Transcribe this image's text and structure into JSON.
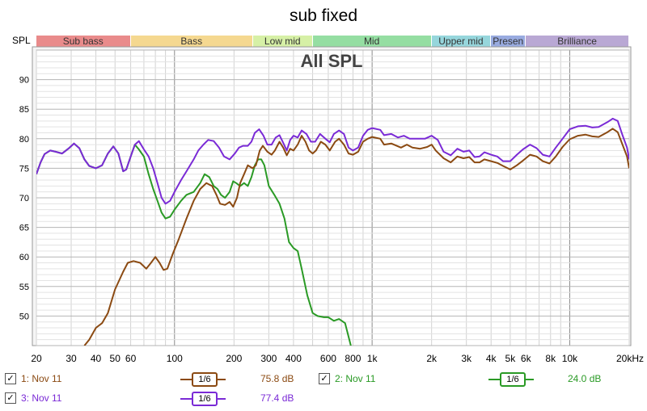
{
  "title": "sub fixed",
  "y_unit_label": "SPL",
  "bands": [
    {
      "label": "Sub bass",
      "from": 20,
      "to": 60,
      "color": "#e98b8b"
    },
    {
      "label": "Bass",
      "from": 60,
      "to": 250,
      "color": "#f5d890"
    },
    {
      "label": "Low mid",
      "from": 250,
      "to": 500,
      "color": "#d6f0a6"
    },
    {
      "label": "Mid",
      "from": 500,
      "to": 2000,
      "color": "#95dea2"
    },
    {
      "label": "Upper mid",
      "from": 2000,
      "to": 4000,
      "color": "#96d6dc"
    },
    {
      "label": "Presen",
      "from": 4000,
      "to": 6000,
      "color": "#99abe0"
    },
    {
      "label": "Brilliance",
      "from": 6000,
      "to": 20000,
      "color": "#b9a8d4"
    }
  ],
  "chart_data": {
    "type": "line",
    "title": "All SPL",
    "xlabel": "",
    "ylabel": "SPL",
    "x_scale": "log",
    "xlim": [
      20,
      20000
    ],
    "ylim": [
      45,
      95
    ],
    "x_ticks": [
      {
        "value": 20,
        "label": "20"
      },
      {
        "value": 30,
        "label": "30"
      },
      {
        "value": 40,
        "label": "40"
      },
      {
        "value": 50,
        "label": "50"
      },
      {
        "value": 60,
        "label": "60"
      },
      {
        "value": 100,
        "label": "100"
      },
      {
        "value": 200,
        "label": "200"
      },
      {
        "value": 300,
        "label": "300"
      },
      {
        "value": 400,
        "label": "400"
      },
      {
        "value": 600,
        "label": "600"
      },
      {
        "value": 800,
        "label": "800"
      },
      {
        "value": 1000,
        "label": "1k"
      },
      {
        "value": 2000,
        "label": "2k"
      },
      {
        "value": 3000,
        "label": "3k"
      },
      {
        "value": 4000,
        "label": "4k"
      },
      {
        "value": 5000,
        "label": "5k"
      },
      {
        "value": 6000,
        "label": "6k"
      },
      {
        "value": 8000,
        "label": "8k"
      },
      {
        "value": 10000,
        "label": "10k"
      },
      {
        "value": 20000,
        "label": "20kHz"
      }
    ],
    "y_ticks": [
      50,
      55,
      60,
      65,
      70,
      75,
      80,
      85,
      90
    ],
    "grid": true,
    "series": [
      {
        "name": "1: Nov 11",
        "color": "#8b4a12",
        "smoothing": "1/6",
        "level": "75.8 dB",
        "checked": true,
        "points": [
          [
            35,
            45.0
          ],
          [
            37,
            46.0
          ],
          [
            40,
            48.0
          ],
          [
            43,
            48.8
          ],
          [
            46,
            50.5
          ],
          [
            50,
            54.5
          ],
          [
            55,
            57.5
          ],
          [
            58,
            59.0
          ],
          [
            62,
            59.3
          ],
          [
            67,
            59.0
          ],
          [
            72,
            58.0
          ],
          [
            76,
            59.0
          ],
          [
            80,
            60.0
          ],
          [
            84,
            59.0
          ],
          [
            88,
            57.8
          ],
          [
            92,
            58.0
          ],
          [
            98,
            60.5
          ],
          [
            105,
            63.0
          ],
          [
            115,
            66.5
          ],
          [
            125,
            69.5
          ],
          [
            135,
            71.5
          ],
          [
            145,
            72.5
          ],
          [
            155,
            72.0
          ],
          [
            163,
            70.5
          ],
          [
            170,
            69.0
          ],
          [
            180,
            68.8
          ],
          [
            190,
            69.3
          ],
          [
            198,
            68.5
          ],
          [
            207,
            70.0
          ],
          [
            215,
            72.5
          ],
          [
            225,
            74.0
          ],
          [
            235,
            75.5
          ],
          [
            248,
            75.0
          ],
          [
            258,
            75.5
          ],
          [
            270,
            78.0
          ],
          [
            280,
            78.8
          ],
          [
            295,
            77.8
          ],
          [
            310,
            77.3
          ],
          [
            322,
            78.0
          ],
          [
            340,
            79.5
          ],
          [
            355,
            78.5
          ],
          [
            370,
            77.2
          ],
          [
            385,
            78.3
          ],
          [
            400,
            78.0
          ],
          [
            420,
            79.0
          ],
          [
            440,
            80.5
          ],
          [
            460,
            79.5
          ],
          [
            480,
            78.0
          ],
          [
            500,
            77.5
          ],
          [
            520,
            78.0
          ],
          [
            550,
            79.5
          ],
          [
            580,
            79.0
          ],
          [
            610,
            78.0
          ],
          [
            650,
            79.5
          ],
          [
            680,
            80.0
          ],
          [
            720,
            79.0
          ],
          [
            760,
            77.5
          ],
          [
            800,
            77.3
          ],
          [
            850,
            77.8
          ],
          [
            900,
            79.5
          ],
          [
            950,
            80.0
          ],
          [
            1000,
            80.3
          ],
          [
            1100,
            80.0
          ],
          [
            1150,
            79.0
          ],
          [
            1250,
            79.2
          ],
          [
            1400,
            78.5
          ],
          [
            1500,
            79.0
          ],
          [
            1600,
            78.5
          ],
          [
            1750,
            78.3
          ],
          [
            1900,
            78.6
          ],
          [
            2000,
            79.0
          ],
          [
            2100,
            78.0
          ],
          [
            2300,
            76.7
          ],
          [
            2500,
            76.0
          ],
          [
            2700,
            77.0
          ],
          [
            2900,
            76.7
          ],
          [
            3100,
            76.9
          ],
          [
            3300,
            76.0
          ],
          [
            3500,
            76.0
          ],
          [
            3700,
            76.5
          ],
          [
            4000,
            76.2
          ],
          [
            4300,
            75.9
          ],
          [
            4600,
            75.4
          ],
          [
            5000,
            74.8
          ],
          [
            5400,
            75.5
          ],
          [
            5800,
            76.3
          ],
          [
            6300,
            77.3
          ],
          [
            6800,
            77.0
          ],
          [
            7300,
            76.2
          ],
          [
            7900,
            75.8
          ],
          [
            8500,
            77.0
          ],
          [
            9200,
            78.6
          ],
          [
            10000,
            79.9
          ],
          [
            11000,
            80.5
          ],
          [
            12000,
            80.7
          ],
          [
            13000,
            80.4
          ],
          [
            14000,
            80.3
          ],
          [
            15500,
            81.1
          ],
          [
            16500,
            81.7
          ],
          [
            17500,
            81.1
          ],
          [
            18500,
            79.0
          ],
          [
            19500,
            77.0
          ],
          [
            20000,
            75.0
          ]
        ]
      },
      {
        "name": "2: Nov 11",
        "color": "#2a9a25",
        "smoothing": "1/6",
        "level": "24.0 dB",
        "checked": true,
        "points": [
          [
            20,
            74.0
          ],
          [
            21,
            76.0
          ],
          [
            22,
            77.4
          ],
          [
            23.5,
            78.0
          ],
          [
            25,
            77.8
          ],
          [
            27,
            77.5
          ],
          [
            29,
            78.3
          ],
          [
            31,
            79.2
          ],
          [
            33,
            78.4
          ],
          [
            35,
            76.5
          ],
          [
            37,
            75.4
          ],
          [
            40,
            75.0
          ],
          [
            43,
            75.5
          ],
          [
            46,
            77.5
          ],
          [
            49,
            78.7
          ],
          [
            52,
            77.5
          ],
          [
            55,
            74.5
          ],
          [
            57,
            74.8
          ],
          [
            60,
            77.0
          ],
          [
            63,
            79.0
          ],
          [
            66,
            78.2
          ],
          [
            70,
            77.0
          ],
          [
            74,
            74.0
          ],
          [
            78,
            71.5
          ],
          [
            82,
            69.5
          ],
          [
            86,
            67.5
          ],
          [
            90,
            66.5
          ],
          [
            95,
            66.8
          ],
          [
            100,
            68.0
          ],
          [
            108,
            69.5
          ],
          [
            115,
            70.5
          ],
          [
            125,
            71.0
          ],
          [
            135,
            72.5
          ],
          [
            142,
            74.0
          ],
          [
            150,
            73.5
          ],
          [
            158,
            72.0
          ],
          [
            165,
            71.5
          ],
          [
            172,
            70.5
          ],
          [
            180,
            70.0
          ],
          [
            190,
            71.0
          ],
          [
            198,
            72.8
          ],
          [
            205,
            72.5
          ],
          [
            215,
            72.0
          ],
          [
            225,
            72.5
          ],
          [
            235,
            72.0
          ],
          [
            245,
            73.5
          ],
          [
            255,
            75.5
          ],
          [
            265,
            76.5
          ],
          [
            275,
            76.5
          ],
          [
            285,
            75.5
          ],
          [
            300,
            72.0
          ],
          [
            320,
            70.5
          ],
          [
            340,
            69.0
          ],
          [
            360,
            66.5
          ],
          [
            380,
            62.5
          ],
          [
            400,
            61.5
          ],
          [
            420,
            61.0
          ],
          [
            440,
            58.0
          ],
          [
            470,
            53.5
          ],
          [
            500,
            50.5
          ],
          [
            530,
            50.0
          ],
          [
            570,
            49.8
          ],
          [
            600,
            49.8
          ],
          [
            640,
            49.2
          ],
          [
            680,
            49.5
          ],
          [
            730,
            48.8
          ],
          [
            760,
            46.5
          ],
          [
            780,
            45.0
          ]
        ]
      },
      {
        "name": "3: Nov 11",
        "color": "#7a2ad6",
        "smoothing": "1/6",
        "level": "77.4 dB",
        "checked": true,
        "points": [
          [
            20,
            74.0
          ],
          [
            21,
            76.0
          ],
          [
            22,
            77.4
          ],
          [
            23.5,
            78.0
          ],
          [
            25,
            77.8
          ],
          [
            27,
            77.5
          ],
          [
            29,
            78.3
          ],
          [
            31,
            79.2
          ],
          [
            33,
            78.4
          ],
          [
            35,
            76.5
          ],
          [
            37,
            75.4
          ],
          [
            40,
            75.0
          ],
          [
            43,
            75.5
          ],
          [
            46,
            77.5
          ],
          [
            49,
            78.7
          ],
          [
            52,
            77.5
          ],
          [
            55,
            74.5
          ],
          [
            57,
            74.8
          ],
          [
            60,
            77.0
          ],
          [
            63,
            79.0
          ],
          [
            66,
            79.6
          ],
          [
            70,
            78.2
          ],
          [
            74,
            77.0
          ],
          [
            78,
            75.0
          ],
          [
            82,
            72.5
          ],
          [
            86,
            70.0
          ],
          [
            90,
            69.0
          ],
          [
            95,
            69.5
          ],
          [
            100,
            71.0
          ],
          [
            108,
            73.0
          ],
          [
            115,
            74.5
          ],
          [
            125,
            76.5
          ],
          [
            132,
            78.0
          ],
          [
            140,
            79.0
          ],
          [
            148,
            79.8
          ],
          [
            158,
            79.6
          ],
          [
            168,
            78.5
          ],
          [
            178,
            77.0
          ],
          [
            190,
            76.5
          ],
          [
            202,
            77.5
          ],
          [
            212,
            78.5
          ],
          [
            222,
            78.8
          ],
          [
            235,
            78.8
          ],
          [
            245,
            79.5
          ],
          [
            255,
            81.0
          ],
          [
            268,
            81.6
          ],
          [
            282,
            80.5
          ],
          [
            295,
            79.0
          ],
          [
            310,
            79.0
          ],
          [
            325,
            80.2
          ],
          [
            340,
            80.6
          ],
          [
            355,
            79.3
          ],
          [
            370,
            78.0
          ],
          [
            385,
            79.8
          ],
          [
            400,
            80.5
          ],
          [
            420,
            80.2
          ],
          [
            440,
            81.4
          ],
          [
            465,
            80.8
          ],
          [
            490,
            79.5
          ],
          [
            515,
            79.5
          ],
          [
            545,
            80.8
          ],
          [
            580,
            80.0
          ],
          [
            610,
            79.4
          ],
          [
            640,
            80.8
          ],
          [
            680,
            81.4
          ],
          [
            720,
            80.8
          ],
          [
            760,
            78.5
          ],
          [
            800,
            78.0
          ],
          [
            850,
            78.5
          ],
          [
            900,
            80.5
          ],
          [
            950,
            81.5
          ],
          [
            1000,
            81.8
          ],
          [
            1100,
            81.5
          ],
          [
            1150,
            80.6
          ],
          [
            1250,
            80.8
          ],
          [
            1350,
            80.2
          ],
          [
            1450,
            80.5
          ],
          [
            1550,
            80.0
          ],
          [
            1700,
            80.0
          ],
          [
            1850,
            80.0
          ],
          [
            2000,
            80.5
          ],
          [
            2150,
            79.8
          ],
          [
            2300,
            77.8
          ],
          [
            2500,
            77.2
          ],
          [
            2700,
            78.3
          ],
          [
            2900,
            77.8
          ],
          [
            3100,
            78.0
          ],
          [
            3300,
            76.9
          ],
          [
            3500,
            77.0
          ],
          [
            3700,
            77.7
          ],
          [
            4000,
            77.3
          ],
          [
            4300,
            77.0
          ],
          [
            4600,
            76.2
          ],
          [
            5000,
            76.2
          ],
          [
            5400,
            77.3
          ],
          [
            5800,
            78.2
          ],
          [
            6300,
            79.0
          ],
          [
            6800,
            78.4
          ],
          [
            7300,
            77.3
          ],
          [
            7900,
            77.0
          ],
          [
            8500,
            78.5
          ],
          [
            9200,
            80.0
          ],
          [
            10000,
            81.6
          ],
          [
            11000,
            82.1
          ],
          [
            12000,
            82.2
          ],
          [
            13000,
            81.9
          ],
          [
            14000,
            82.0
          ],
          [
            15500,
            82.8
          ],
          [
            16500,
            83.4
          ],
          [
            17500,
            83.0
          ],
          [
            18500,
            80.6
          ],
          [
            19500,
            78.5
          ],
          [
            20000,
            76.5
          ]
        ]
      }
    ]
  }
}
